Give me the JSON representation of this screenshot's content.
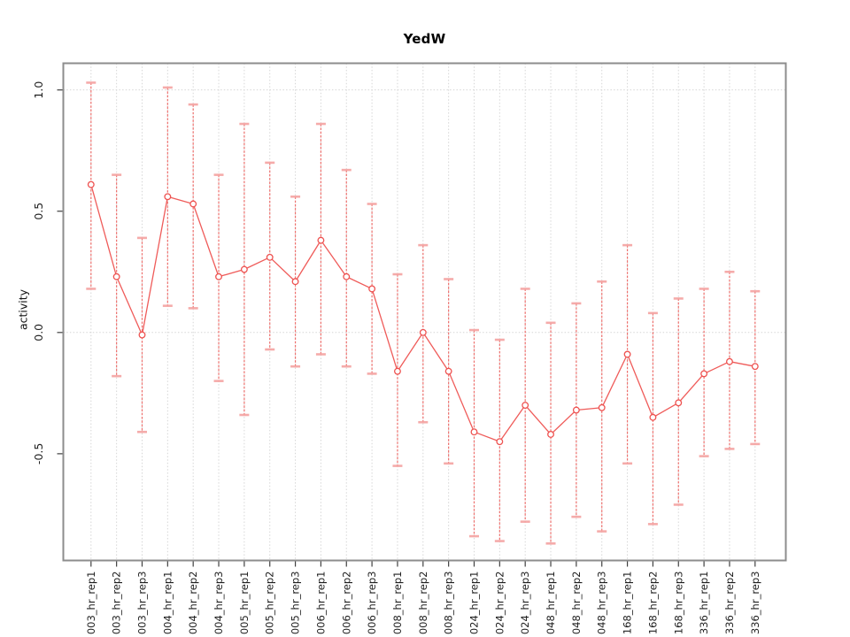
{
  "chart_data": {
    "type": "line",
    "title": "YedW",
    "xlabel": "",
    "ylabel": "activity",
    "legend_position": "none",
    "categories": [
      "003_hr_rep1",
      "003_hr_rep2",
      "003_hr_rep3",
      "004_hr_rep1",
      "004_hr_rep2",
      "004_hr_rep3",
      "005_hr_rep1",
      "005_hr_rep2",
      "005_hr_rep3",
      "006_hr_rep1",
      "006_hr_rep2",
      "006_hr_rep3",
      "008_hr_rep1",
      "008_hr_rep2",
      "008_hr_rep3",
      "024_hr_rep1",
      "024_hr_rep2",
      "024_hr_rep3",
      "048_hr_rep1",
      "048_hr_rep2",
      "048_hr_rep3",
      "168_hr_rep1",
      "168_hr_rep2",
      "168_hr_rep3",
      "336_hr_rep1",
      "336_hr_rep2",
      "336_hr_rep3"
    ],
    "series": [
      {
        "name": "activity",
        "marker": "open-circle",
        "values": [
          0.61,
          0.23,
          -0.01,
          0.56,
          0.53,
          0.23,
          0.26,
          0.31,
          0.21,
          0.38,
          0.23,
          0.18,
          -0.16,
          0.0,
          -0.16,
          -0.41,
          -0.45,
          -0.3,
          -0.42,
          -0.32,
          -0.31,
          -0.09,
          -0.35,
          -0.29,
          -0.17,
          -0.12,
          -0.14
        ],
        "error_high": [
          1.03,
          0.65,
          0.39,
          1.01,
          0.94,
          0.65,
          0.86,
          0.7,
          0.56,
          0.86,
          0.67,
          0.53,
          0.24,
          0.36,
          0.22,
          0.01,
          -0.03,
          0.18,
          0.04,
          0.12,
          0.21,
          0.36,
          0.08,
          0.14,
          0.18,
          0.25,
          0.17
        ],
        "error_low": [
          0.18,
          -0.18,
          -0.41,
          0.11,
          0.1,
          -0.2,
          -0.34,
          -0.07,
          -0.14,
          -0.09,
          -0.14,
          -0.17,
          -0.55,
          -0.37,
          -0.54,
          -0.84,
          -0.86,
          -0.78,
          -0.87,
          -0.76,
          -0.82,
          -0.54,
          -0.79,
          -0.71,
          -0.51,
          -0.48,
          -0.46
        ]
      }
    ],
    "yticks": [
      1.0,
      0.5,
      0.0,
      -0.5
    ],
    "ytick_labels": [
      "1.0",
      "0.5",
      "0.0",
      "-0.5"
    ],
    "ylim": [
      -0.94,
      1.11
    ],
    "grid": {
      "vertical": "every-category",
      "horizontal_at": [
        0.0,
        1.0
      ],
      "style": "dotted"
    },
    "colors": {
      "line": "#ee5250",
      "marker_stroke": "#ee5250",
      "marker_fill": "#ffffff",
      "error_stem": "#ef6461",
      "error_cap": "#f5a3a1",
      "gridline": "#d6d6d6",
      "frame": "#8d8d8d",
      "tick": "#404040",
      "label_text": "#1f1f1f"
    }
  }
}
